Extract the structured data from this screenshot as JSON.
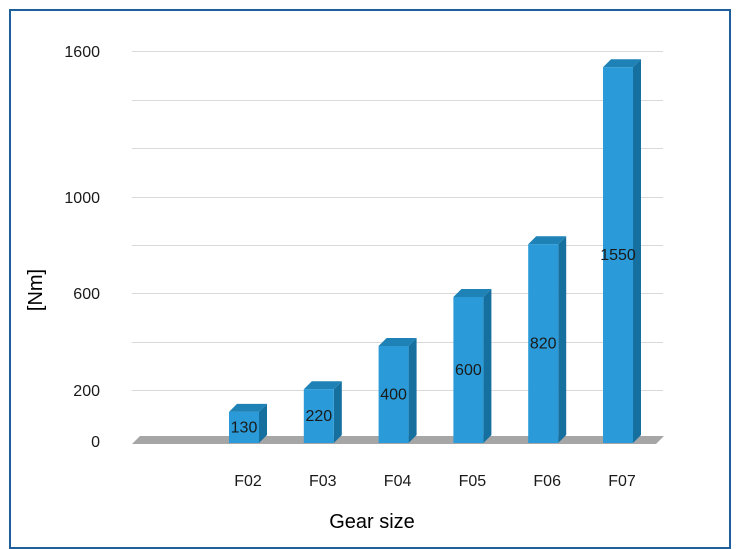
{
  "chart_data": {
    "type": "bar",
    "style": "3d-column",
    "categories": [
      "F02",
      "F03",
      "F04",
      "F05",
      "F06",
      "F07"
    ],
    "series": [
      {
        "values": [
          130,
          220,
          400,
          600,
          820,
          1550
        ]
      }
    ],
    "data_labels": [
      "130",
      "220",
      "400",
      "600",
      "820",
      "1550"
    ],
    "xlabel": "Gear size",
    "ylabel": "[Nm]",
    "y_tick_labels": [
      "0",
      "200",
      "600",
      "1000",
      "1600"
    ],
    "y_tick_values": [
      0,
      200,
      600,
      1000,
      1600
    ],
    "y_grid_values": [
      200,
      400,
      600,
      800,
      1000,
      1200,
      1400,
      1600
    ],
    "ylim": [
      0,
      1600
    ],
    "grid": true,
    "legend": "none",
    "colors": {
      "bar_front": "#2a9bd8",
      "bar_side": "#16709f",
      "bar_top": "#1e82b6",
      "floor": "#a6a6a6",
      "grid": "#d9d9d9",
      "frame": "#1f5f9a"
    }
  }
}
